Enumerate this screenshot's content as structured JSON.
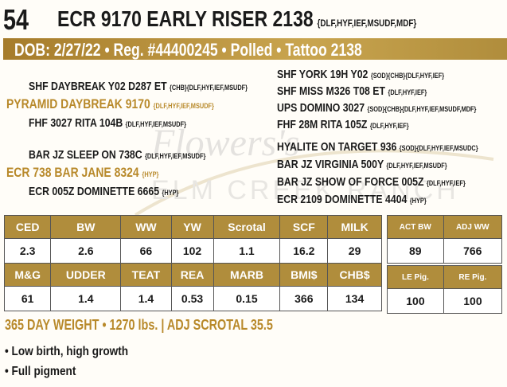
{
  "lot_number": "54",
  "title": "ECR 9170 EARLY RISER 2138",
  "title_tags": "{DLF,HYF,IEF,MSUDF,MDF}",
  "info_bar": "DOB: 2/27/22 • Reg. #44400245 • Polled • Tattoo 2138",
  "pedigree": {
    "sire_sire_sire": {
      "name": "SHF DAYBREAK Y02 D287 ET",
      "tags": "{CHB}{DLF,HYF,IEF,MSUDF}"
    },
    "sire_sire": {
      "name": "PYRAMID DAYBREAK 9170",
      "tags": "{DLF,HYF,IEF,MSUDF}"
    },
    "sire_sire_dam": {
      "name": "FHF 3027 RITA 104B",
      "tags": "{DLF,HYF,IEF,MSUDF}"
    },
    "sire_dam_sire": {
      "name": "BAR JZ SLEEP ON 738C",
      "tags": "{DLF,HYF,IEF,MSUDF}"
    },
    "sire_dam": {
      "name": "ECR 738 BAR JANE 8324",
      "tags": "{HYP}"
    },
    "sire_dam_dam": {
      "name": "ECR 005Z DOMINETTE 6665",
      "tags": "{HYP}"
    },
    "right": [
      {
        "name": "SHF YORK 19H Y02",
        "tags": "{SOD}{CHB}{DLF,HYF,IEF}"
      },
      {
        "name": "SHF MISS M326 T08 ET",
        "tags": "{DLF,HYF,IEF}"
      },
      {
        "name": "UPS DOMINO 3027",
        "tags": "{SOD}{CHB}{DLF,HYF,IEF,MSUDF,MDF}"
      },
      {
        "name": "FHF 28M RITA 105Z",
        "tags": "{DLF,HYF,IEF}"
      },
      {
        "name": "HYALITE ON TARGET 936",
        "tags": "{SOD}{DLF,HYF,IEF,MSUDC}"
      },
      {
        "name": "BAR JZ VIRGINIA 500Y",
        "tags": "{DLF,HYF,IEF,MSUDF}"
      },
      {
        "name": "BAR JZ SHOW OF FORCE 005Z",
        "tags": "{DLF,HYF,IEF}"
      },
      {
        "name": "ECR 2109 DOMINETTE 4404",
        "tags": "{HYP}"
      }
    ]
  },
  "epd_row1": {
    "headers": [
      "CED",
      "BW",
      "WW",
      "YW",
      "Scrotal",
      "SCF",
      "MILK"
    ],
    "values": [
      "2.3",
      "2.6",
      "66",
      "102",
      "1.1",
      "16.2",
      "29"
    ]
  },
  "epd_row2": {
    "headers": [
      "M&G",
      "UDDER",
      "TEAT",
      "REA",
      "MARB",
      "BMI$",
      "CHB$"
    ],
    "values": [
      "61",
      "1.4",
      "1.4",
      "0.53",
      "0.15",
      "366",
      "134"
    ]
  },
  "actual_row": {
    "headers": [
      "ACT BW",
      "ADJ WW"
    ],
    "values": [
      "89",
      "766"
    ]
  },
  "pig_row": {
    "headers": [
      "LE Pig.",
      "RE Pig."
    ],
    "values": [
      "100",
      "100"
    ]
  },
  "summary": "365 DAY WEIGHT • 1270 lbs. | ADJ SCROTAL 35.5",
  "bullets": [
    "• Low birth, high growth",
    "• Full pigment"
  ],
  "watermark_text": "Flowers's ELM CREEK RANCH",
  "colors": {
    "gold": "#b08d3c",
    "gold_text": "#b8892a"
  }
}
